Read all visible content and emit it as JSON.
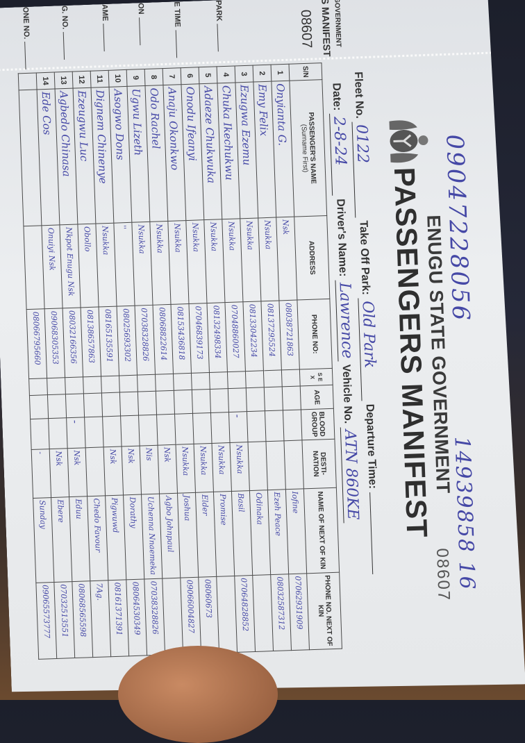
{
  "stub": {
    "government": "GOVERNMENT",
    "manifest": "S MANIFEST",
    "serial": "08607",
    "labels": [
      "PARK",
      "E TIME",
      "ON",
      "AME",
      "G. NO.",
      "ONE NO."
    ]
  },
  "header": {
    "state": "ENUGU STATE GOVERNMENT",
    "title": "PASSENGERS MANIFEST",
    "serial": "08607",
    "handwritten_phone": "09047228056",
    "handwritten_number": "14939858 16"
  },
  "fields": {
    "fleet_label": "Fleet No.",
    "fleet_value": "0122",
    "takeoff_label": "Take Off Park:",
    "takeoff_value": "Old Park",
    "departure_label": "Departure Time:",
    "departure_value": "",
    "date_label": "Date:",
    "date_value": "2-8-24",
    "driver_label": "Driver's Name:",
    "driver_value": "Lawrence",
    "vehicle_label": "Vehicle No.",
    "vehicle_value": "ATN 860KE"
  },
  "table": {
    "headers": {
      "sn": "S/N",
      "name": "PASSENGER'S NAME",
      "name_sub": "(Surname First)",
      "address": "ADDRESS",
      "phone": "PHONE NO:",
      "sex": "S E X",
      "age": "AGE",
      "blood": "BLOOD GROUP",
      "destination": "DESTI- NATION",
      "kin_name": "NAME OF NEXT OF KIN",
      "kin_phone": "PHONE NO. NEXT OF KIN"
    },
    "rows": [
      {
        "sn": "1",
        "name": "Onyianta G.",
        "address": "Nsk",
        "phone": "08038721863",
        "blood": "",
        "dest": "",
        "kin": "Iofine",
        "kin_phone": "07062931909"
      },
      {
        "sn": "2",
        "name": "Emy Felix",
        "address": "Nsukka",
        "phone": "08137295524",
        "blood": "",
        "dest": "",
        "kin": "Ezeh Peace",
        "kin_phone": "08032587312"
      },
      {
        "sn": "3",
        "name": "Ezugwa Ezemu",
        "address": "Nsukka",
        "phone": "08133042234",
        "blood": "",
        "dest": "",
        "kin": "Odinaka",
        "kin_phone": ""
      },
      {
        "sn": "4",
        "name": "Chuka Ikechukwu",
        "address": "Nsukka",
        "phone": "07048860027",
        "blood": "-",
        "dest": "Nsukka",
        "kin": "Basil",
        "kin_phone": "07064828852"
      },
      {
        "sn": "5",
        "name": "Adaeze Chukwuka",
        "address": "Nsukka",
        "phone": "08132498334",
        "blood": "",
        "dest": "Nsukka",
        "kin": "Promise",
        "kin_phone": ""
      },
      {
        "sn": "6",
        "name": "Onodu Ifeanyi",
        "address": "Nsukka",
        "phone": "07046839173",
        "blood": "",
        "dest": "Nsukka",
        "kin": "Elder",
        "kin_phone": "08060673"
      },
      {
        "sn": "7",
        "name": "Anaju Okonkwo",
        "address": "Nsukka",
        "phone": "08153436818",
        "blood": "",
        "dest": "Nsukka",
        "kin": "Joshua",
        "kin_phone": "09066004827"
      },
      {
        "sn": "8",
        "name": "Odo Rachel",
        "address": "Nsukka",
        "phone": "08068822614",
        "blood": "",
        "dest": "Nsk",
        "kin": "Agbo Johnpaul",
        "kin_phone": ""
      },
      {
        "sn": "9",
        "name": "Ugwu Lizeth",
        "address": "Nsukka",
        "phone": "07038328826",
        "blood": "",
        "dest": "Nis",
        "kin": "Uchenna Nnaemeka",
        "kin_phone": "07038328826"
      },
      {
        "sn": "10",
        "name": "Asogwo Dons",
        "address": "''",
        "phone": "08025693302",
        "blood": "",
        "dest": "Nsk",
        "kin": "Dorathy",
        "kin_phone": "08064530349"
      },
      {
        "sn": "11",
        "name": "Dignem Chinenye",
        "address": "Nsukka",
        "phone": "08165135591",
        "blood": "",
        "dest": "Nsk",
        "kin": "Pigwuwd",
        "kin_phone": "08161371391"
      },
      {
        "sn": "12",
        "name": "Ezeugwu Luc",
        "address": "Obollo",
        "phone": "08138657863",
        "blood": "",
        "dest": "",
        "kin": "Chedo Favour",
        "kin_phone": "7Ag."
      },
      {
        "sn": "13",
        "name": "Agbedo Chinasa",
        "address": "Nkpot Enugu Nsk",
        "phone": "08032166356",
        "blood": "-",
        "dest": "Nsk",
        "kin": "Eduu",
        "kin_phone": "08068565598"
      },
      {
        "sn": "14",
        "name": "Ede Cos",
        "address": "Onuiyi Nsk",
        "phone": "09068305353",
        "blood": "",
        "dest": "Nsk",
        "kin": "Ebere",
        "kin_phone": "07032513551"
      },
      {
        "sn": "",
        "name": "",
        "address": "",
        "phone": "08066795660",
        "blood": "",
        "dest": "-",
        "kin": "Sunday",
        "kin_phone": "09065573777"
      }
    ]
  },
  "colors": {
    "ink": "#4548a6",
    "paper": "#e6e8ea",
    "print": "#333333"
  }
}
